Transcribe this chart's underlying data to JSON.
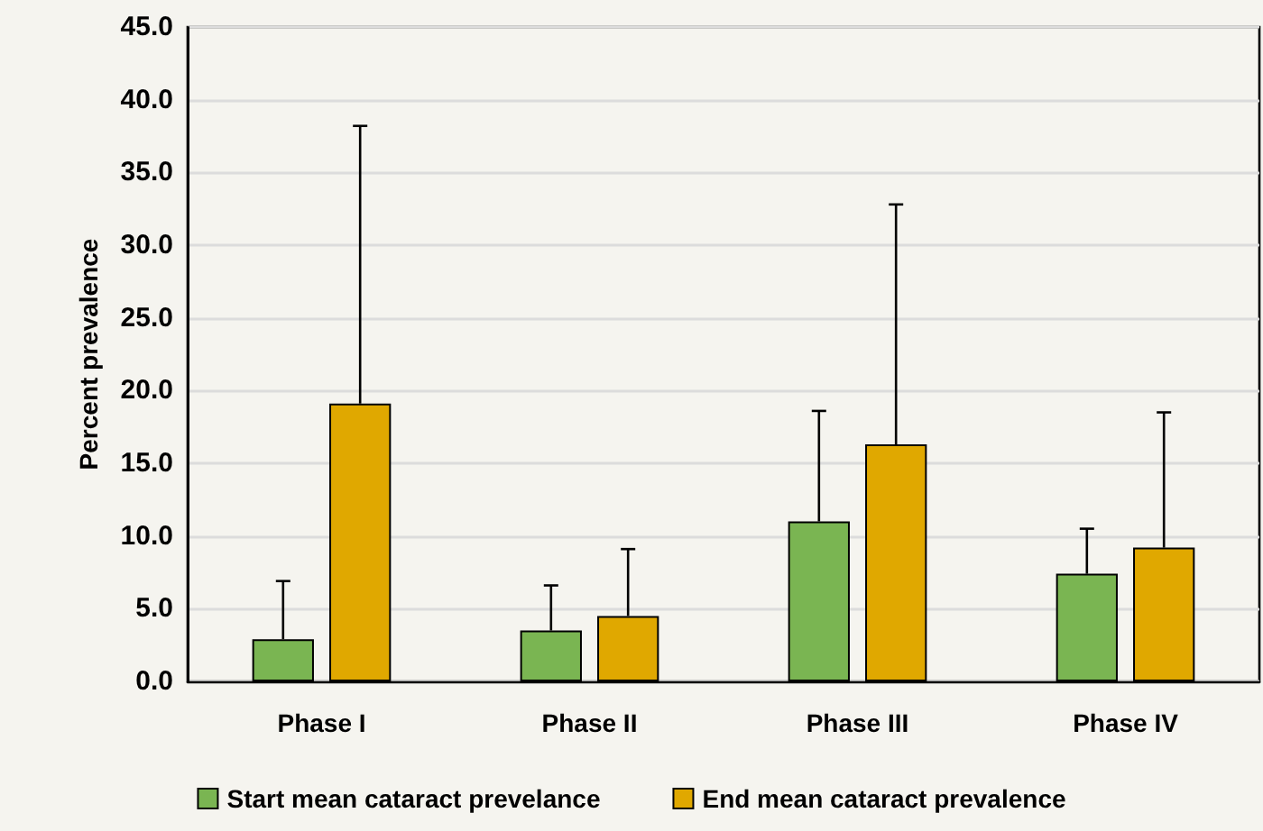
{
  "chart_data": {
    "type": "bar",
    "ylabel": "Percent prevalence",
    "categories": [
      "Phase I",
      "Phase II",
      "Phase III",
      "Phase IV"
    ],
    "series": [
      {
        "name": "Start mean cataract prevelance",
        "color": "#7ab552",
        "values": [
          2.9,
          3.5,
          11.0,
          7.4
        ],
        "errors": [
          [
            2.9,
            6.9
          ],
          [
            3.5,
            6.6
          ],
          [
            11.0,
            18.6
          ],
          [
            7.4,
            10.5
          ]
        ]
      },
      {
        "name": "End mean cataract prevalence",
        "color": "#e0a800",
        "values": [
          19.1,
          4.5,
          16.3,
          9.2
        ],
        "errors": [
          [
            19.1,
            38.2
          ],
          [
            4.5,
            9.1
          ],
          [
            16.3,
            32.8
          ],
          [
            9.2,
            18.5
          ]
        ]
      }
    ],
    "ylim": [
      0,
      45
    ],
    "yticks": [
      {
        "value": 0,
        "label": "0.0"
      },
      {
        "value": 5,
        "label": "5.0"
      },
      {
        "value": 10,
        "label": "10.0"
      },
      {
        "value": 15,
        "label": "15.0"
      },
      {
        "value": 20,
        "label": "20.0"
      },
      {
        "value": 25,
        "label": "25.0"
      },
      {
        "value": 30,
        "label": "30.0"
      },
      {
        "value": 35,
        "label": "35.0"
      },
      {
        "value": 40,
        "label": "40.0"
      },
      {
        "value": 45,
        "label": "45.0"
      }
    ],
    "grid": "y",
    "legend": "bottom"
  }
}
